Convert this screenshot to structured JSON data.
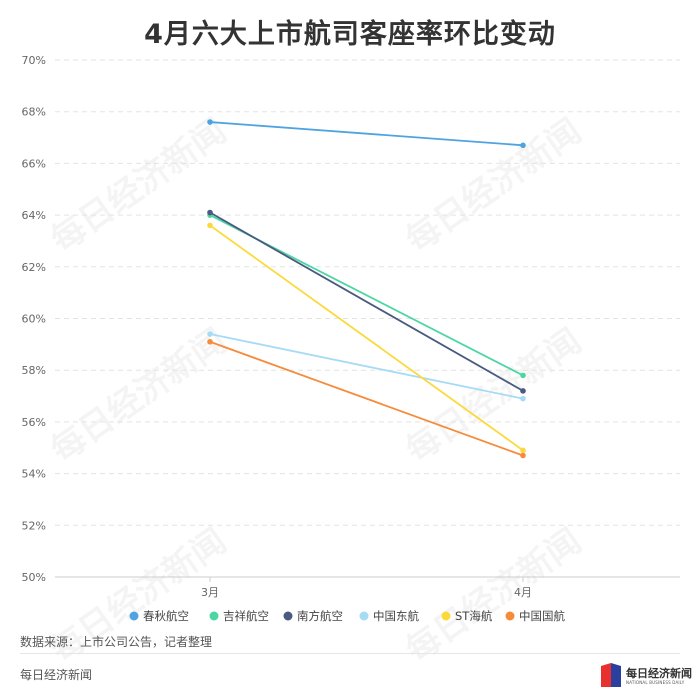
{
  "chart_data": {
    "type": "line",
    "title": "4月六大上市航司客座率环比变动",
    "categories": [
      "3月",
      "4月"
    ],
    "ylim": [
      50,
      70
    ],
    "yticks": [
      "50%",
      "52%",
      "54%",
      "56%",
      "58%",
      "60%",
      "62%",
      "64%",
      "66%",
      "68%",
      "70%"
    ],
    "grid": true,
    "legend_position": "bottom",
    "series": [
      {
        "name": "春秋航空",
        "color": "#4fa3e0",
        "values": [
          67.6,
          66.7
        ]
      },
      {
        "name": "吉祥航空",
        "color": "#4cd6a3",
        "values": [
          64.0,
          57.8
        ]
      },
      {
        "name": "南方航空",
        "color": "#4a5a80",
        "values": [
          64.1,
          57.2
        ]
      },
      {
        "name": "中国东航",
        "color": "#a6dbf5",
        "values": [
          59.4,
          56.9
        ]
      },
      {
        "name": "ST海航",
        "color": "#fcd93b",
        "values": [
          63.6,
          54.9
        ]
      },
      {
        "name": "中国国航",
        "color": "#f58c3c",
        "values": [
          59.1,
          54.7
        ]
      }
    ]
  },
  "source_text": "数据来源：上市公司公告，记者整理",
  "footer": {
    "brand": "每日经济新闻",
    "logo_text": "每日经济新闻",
    "logo_subtext": "NATIONAL BUSINESS DAILY",
    "logo_color": "#e8312f",
    "logo_color_2": "#2a3f9e"
  },
  "watermark_text": "每日经济新闻"
}
